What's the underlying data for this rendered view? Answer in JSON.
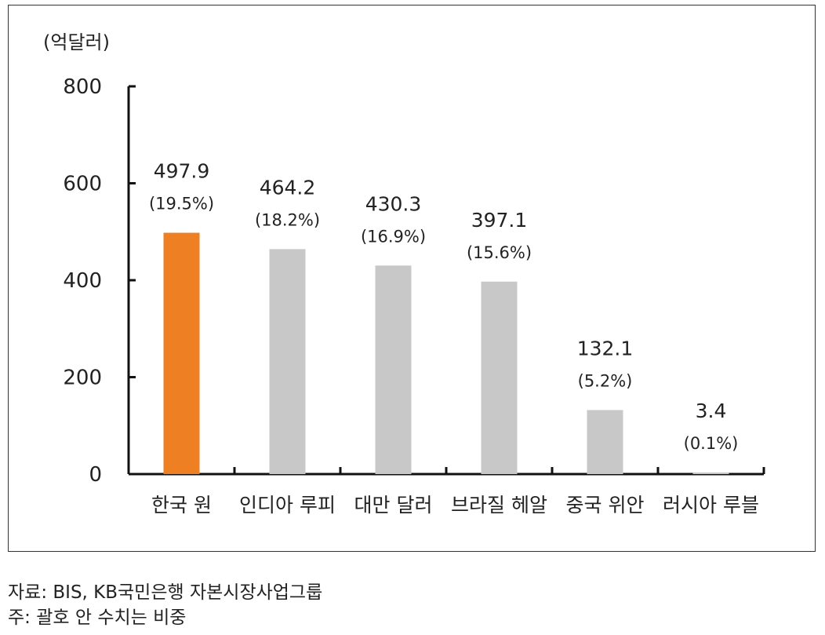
{
  "chart_data": {
    "type": "bar",
    "unit_label": "(억달러)",
    "categories": [
      "한국 원",
      "인디아 루피",
      "대만 달러",
      "브라질 헤알",
      "중국 위안",
      "러시아 루블"
    ],
    "values": [
      497.9,
      464.2,
      430.3,
      397.1,
      132.1,
      3.4
    ],
    "value_labels": [
      "497.9",
      "464.2",
      "430.3",
      "397.1",
      "132.1",
      "3.4"
    ],
    "share_labels": [
      "(19.5%)",
      "(18.2%)",
      "(16.9%)",
      "(15.6%)",
      "(5.2%)",
      "(0.1%)"
    ],
    "ylim": [
      0,
      800
    ],
    "yticks": [
      0,
      200,
      400,
      600,
      800
    ],
    "colors": [
      "#ee7f23",
      "#c8c8c8",
      "#c8c8c8",
      "#c8c8c8",
      "#c8c8c8",
      "#c8c8c8"
    ],
    "grid": false
  },
  "notes": {
    "source": "자료: BIS, KB국민은행 자본시장사업그룹",
    "footnote": "주: 괄호 안 수치는 비중"
  }
}
